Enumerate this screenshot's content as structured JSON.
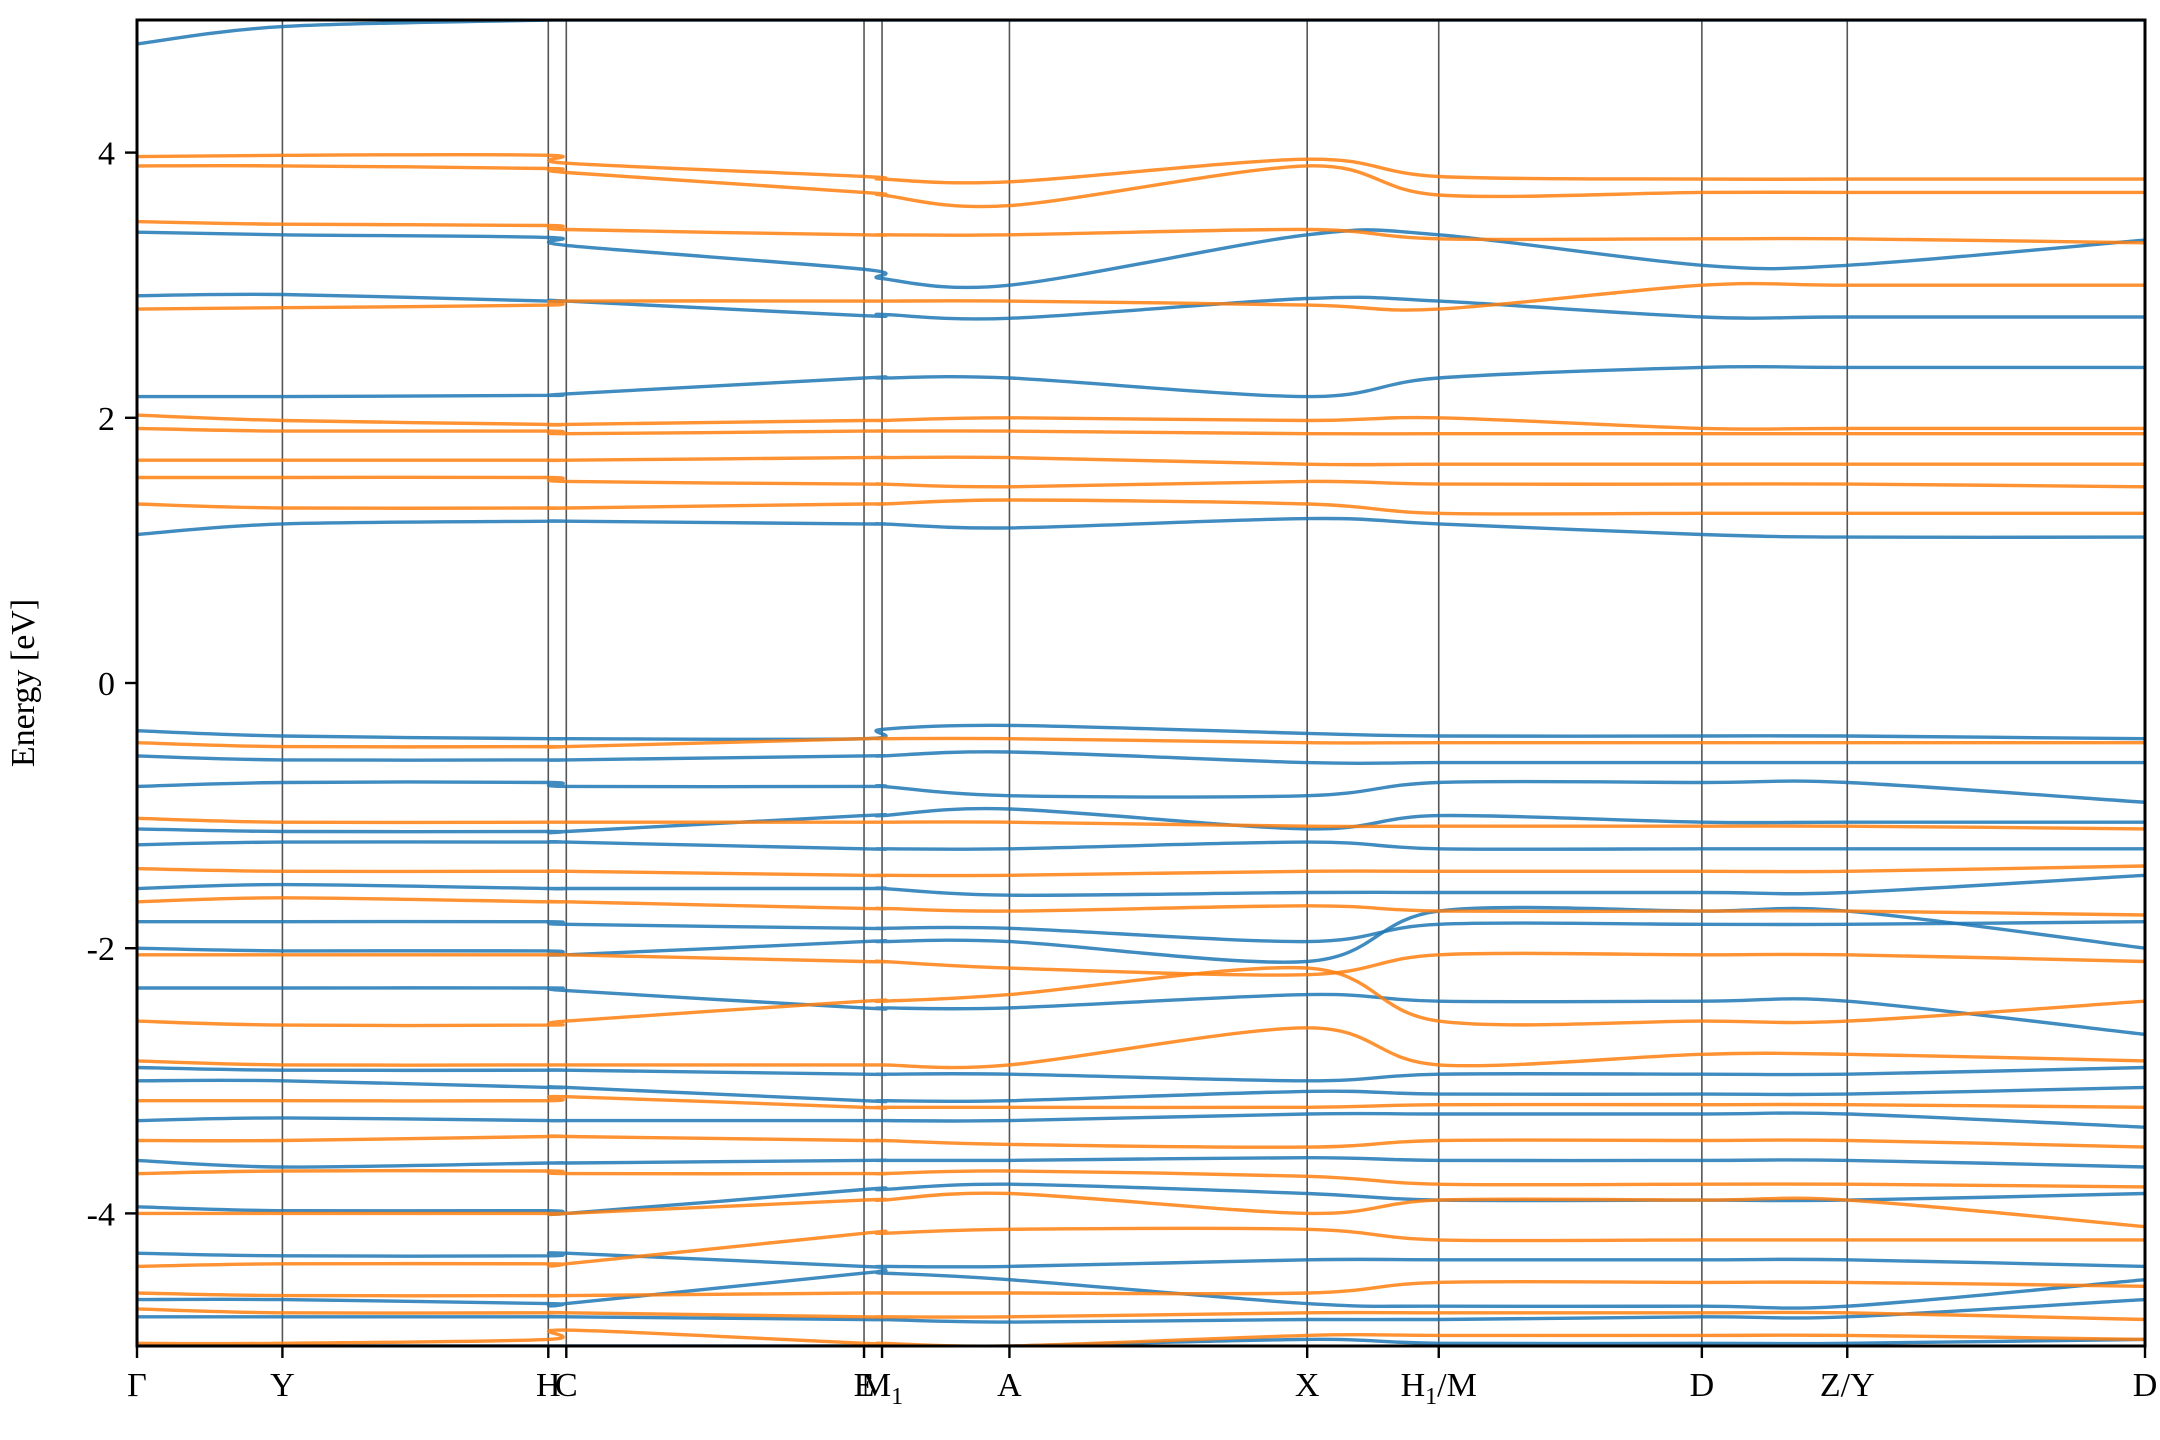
{
  "chart_data": {
    "type": "line",
    "title": "",
    "xlabel": "",
    "ylabel": "Energy [eV]",
    "ylim": [
      -5,
      5
    ],
    "yticks": [
      -4,
      -2,
      0,
      2,
      4
    ],
    "ytick_labels": [
      "-4",
      "-2",
      "0",
      "2",
      "4"
    ],
    "xlim": [
      0,
      14.5
    ],
    "kpoint_labels": [
      {
        "pos": 0.0,
        "label": "Γ"
      },
      {
        "pos": 1.05,
        "label": "Y"
      },
      {
        "pos": 2.97,
        "label": "H"
      },
      {
        "pos": 3.1,
        "label": "C"
      },
      {
        "pos": 5.25,
        "label": "E"
      },
      {
        "pos": 5.38,
        "label": "M",
        "sub": "1"
      },
      {
        "pos": 6.3,
        "label": "A"
      },
      {
        "pos": 8.45,
        "label": "X"
      },
      {
        "pos": 9.4,
        "label": "H",
        "sub": "1",
        "suffix": "/M"
      },
      {
        "pos": 11.3,
        "label": "D"
      },
      {
        "pos": 12.35,
        "label": "Z/Y"
      },
      {
        "pos": 14.5,
        "label": "D"
      }
    ],
    "vlines": [
      1.05,
      2.97,
      3.1,
      5.25,
      5.38,
      6.3,
      8.45,
      9.4,
      11.3,
      12.35
    ],
    "grid": false,
    "legend": "none",
    "series": [
      {
        "color": "#1f77b4",
        "bands": [
          [
            4.82,
            4.95,
            5.0,
            5.0,
            5.0,
            5.0,
            5.0,
            5.0,
            5.0,
            5.0,
            5.0,
            5.0
          ],
          [
            3.4,
            3.38,
            3.36,
            3.3,
            3.12,
            3.05,
            3.0,
            3.38,
            3.38,
            3.15,
            3.15,
            3.34
          ],
          [
            2.92,
            2.93,
            2.88,
            2.88,
            2.77,
            2.78,
            2.75,
            2.9,
            2.88,
            2.76,
            2.76,
            2.76
          ],
          [
            2.16,
            2.16,
            2.17,
            2.18,
            2.3,
            2.3,
            2.3,
            2.16,
            2.3,
            2.38,
            2.38,
            2.38
          ],
          [
            1.12,
            1.2,
            1.22,
            1.22,
            1.2,
            1.2,
            1.17,
            1.24,
            1.2,
            1.12,
            1.1,
            1.1
          ],
          [
            -0.36,
            -0.4,
            -0.42,
            -0.42,
            -0.42,
            -0.35,
            -0.32,
            -0.38,
            -0.4,
            -0.4,
            -0.4,
            -0.42
          ],
          [
            -0.55,
            -0.58,
            -0.58,
            -0.58,
            -0.55,
            -0.55,
            -0.52,
            -0.6,
            -0.6,
            -0.6,
            -0.6,
            -0.6
          ],
          [
            -0.78,
            -0.75,
            -0.75,
            -0.78,
            -0.78,
            -0.78,
            -0.85,
            -0.85,
            -0.75,
            -0.75,
            -0.75,
            -0.9
          ],
          [
            -1.1,
            -1.12,
            -1.12,
            -1.12,
            -1.0,
            -1.0,
            -0.95,
            -1.1,
            -1.0,
            -1.05,
            -1.05,
            -1.05
          ],
          [
            -1.22,
            -1.2,
            -1.2,
            -1.2,
            -1.25,
            -1.25,
            -1.25,
            -1.2,
            -1.25,
            -1.25,
            -1.25,
            -1.25
          ],
          [
            -1.55,
            -1.52,
            -1.55,
            -1.55,
            -1.55,
            -1.55,
            -1.6,
            -1.58,
            -1.58,
            -1.58,
            -1.58,
            -1.45
          ],
          [
            -1.8,
            -1.8,
            -1.8,
            -1.82,
            -1.85,
            -1.85,
            -1.85,
            -1.95,
            -1.82,
            -1.82,
            -1.82,
            -1.8
          ],
          [
            -2.0,
            -2.02,
            -2.02,
            -2.05,
            -1.95,
            -1.95,
            -1.95,
            -2.1,
            -1.72,
            -1.72,
            -1.72,
            -2.0
          ],
          [
            -2.3,
            -2.3,
            -2.3,
            -2.32,
            -2.45,
            -2.45,
            -2.45,
            -2.35,
            -2.4,
            -2.4,
            -2.4,
            -2.65
          ],
          [
            -2.9,
            -2.92,
            -2.92,
            -2.92,
            -2.95,
            -2.95,
            -2.95,
            -3.0,
            -2.95,
            -2.95,
            -2.95,
            -2.9
          ],
          [
            -3.0,
            -3.0,
            -3.05,
            -3.05,
            -3.15,
            -3.15,
            -3.15,
            -3.08,
            -3.1,
            -3.1,
            -3.1,
            -3.05
          ],
          [
            -3.3,
            -3.28,
            -3.3,
            -3.3,
            -3.3,
            -3.3,
            -3.3,
            -3.25,
            -3.25,
            -3.25,
            -3.25,
            -3.35
          ],
          [
            -3.6,
            -3.65,
            -3.62,
            -3.62,
            -3.6,
            -3.6,
            -3.6,
            -3.58,
            -3.6,
            -3.6,
            -3.6,
            -3.65
          ],
          [
            -3.95,
            -3.98,
            -3.98,
            -4.0,
            -3.82,
            -3.82,
            -3.78,
            -3.85,
            -3.9,
            -3.9,
            -3.9,
            -3.85
          ],
          [
            -4.3,
            -4.32,
            -4.32,
            -4.3,
            -4.4,
            -4.4,
            -4.4,
            -4.35,
            -4.35,
            -4.35,
            -4.35,
            -4.4
          ],
          [
            -4.65,
            -4.65,
            -4.68,
            -4.68,
            -4.45,
            -4.45,
            -4.5,
            -4.68,
            -4.7,
            -4.7,
            -4.7,
            -4.5
          ],
          [
            -4.78,
            -4.78,
            -4.78,
            -4.78,
            -4.8,
            -4.8,
            -4.82,
            -4.8,
            -4.8,
            -4.78,
            -4.78,
            -4.65
          ],
          [
            -5.0,
            -5.0,
            -5.0,
            -5.0,
            -5.0,
            -5.0,
            -5.0,
            -4.95,
            -4.98,
            -4.98,
            -4.98,
            -4.95
          ]
        ]
      },
      {
        "color": "#ff7f0e",
        "bands": [
          [
            3.97,
            3.98,
            3.98,
            3.92,
            3.82,
            3.8,
            3.78,
            3.95,
            3.82,
            3.8,
            3.8,
            3.8
          ],
          [
            3.9,
            3.9,
            3.88,
            3.85,
            3.7,
            3.68,
            3.6,
            3.9,
            3.68,
            3.7,
            3.7,
            3.7
          ],
          [
            3.48,
            3.46,
            3.45,
            3.42,
            3.38,
            3.38,
            3.38,
            3.42,
            3.35,
            3.35,
            3.35,
            3.32
          ],
          [
            2.82,
            2.83,
            2.85,
            2.88,
            2.88,
            2.88,
            2.88,
            2.85,
            2.82,
            3.0,
            3.0,
            3.0
          ],
          [
            2.02,
            1.98,
            1.95,
            1.95,
            1.98,
            1.98,
            2.0,
            1.98,
            2.0,
            1.92,
            1.92,
            1.92
          ],
          [
            1.92,
            1.9,
            1.9,
            1.88,
            1.9,
            1.9,
            1.9,
            1.88,
            1.88,
            1.88,
            1.88,
            1.88
          ],
          [
            1.68,
            1.68,
            1.68,
            1.68,
            1.7,
            1.7,
            1.7,
            1.65,
            1.65,
            1.65,
            1.65,
            1.65
          ],
          [
            1.55,
            1.55,
            1.55,
            1.52,
            1.5,
            1.5,
            1.48,
            1.52,
            1.5,
            1.5,
            1.5,
            1.48
          ],
          [
            1.35,
            1.32,
            1.32,
            1.32,
            1.35,
            1.35,
            1.38,
            1.35,
            1.28,
            1.28,
            1.28,
            1.28
          ],
          [
            -0.45,
            -0.48,
            -0.48,
            -0.48,
            -0.42,
            -0.42,
            -0.42,
            -0.45,
            -0.45,
            -0.45,
            -0.45,
            -0.45
          ],
          [
            -1.02,
            -1.05,
            -1.05,
            -1.05,
            -1.05,
            -1.05,
            -1.05,
            -1.08,
            -1.08,
            -1.08,
            -1.08,
            -1.1
          ],
          [
            -1.4,
            -1.42,
            -1.42,
            -1.42,
            -1.45,
            -1.45,
            -1.45,
            -1.42,
            -1.42,
            -1.42,
            -1.42,
            -1.38
          ],
          [
            -1.65,
            -1.62,
            -1.65,
            -1.65,
            -1.7,
            -1.7,
            -1.72,
            -1.68,
            -1.72,
            -1.72,
            -1.72,
            -1.75
          ],
          [
            -2.05,
            -2.05,
            -2.05,
            -2.05,
            -2.1,
            -2.1,
            -2.15,
            -2.2,
            -2.05,
            -2.05,
            -2.05,
            -2.1
          ],
          [
            -2.55,
            -2.58,
            -2.58,
            -2.55,
            -2.4,
            -2.4,
            -2.35,
            -2.15,
            -2.55,
            -2.55,
            -2.55,
            -2.4
          ],
          [
            -2.85,
            -2.88,
            -2.88,
            -2.88,
            -2.88,
            -2.88,
            -2.88,
            -2.6,
            -2.88,
            -2.8,
            -2.8,
            -2.85
          ],
          [
            -3.15,
            -3.15,
            -3.15,
            -3.12,
            -3.2,
            -3.2,
            -3.2,
            -3.2,
            -3.18,
            -3.18,
            -3.18,
            -3.2
          ],
          [
            -3.45,
            -3.45,
            -3.42,
            -3.42,
            -3.45,
            -3.45,
            -3.48,
            -3.5,
            -3.45,
            -3.45,
            -3.45,
            -3.5
          ],
          [
            -3.7,
            -3.68,
            -3.68,
            -3.7,
            -3.7,
            -3.7,
            -3.68,
            -3.72,
            -3.78,
            -3.78,
            -3.78,
            -3.8
          ],
          [
            -4.0,
            -4.0,
            -4.0,
            -4.0,
            -3.9,
            -3.9,
            -3.85,
            -4.0,
            -3.9,
            -3.9,
            -3.9,
            -4.1
          ],
          [
            -4.4,
            -4.38,
            -4.38,
            -4.38,
            -4.15,
            -4.15,
            -4.12,
            -4.12,
            -4.2,
            -4.2,
            -4.2,
            -4.2
          ],
          [
            -4.6,
            -4.62,
            -4.62,
            -4.62,
            -4.6,
            -4.6,
            -4.6,
            -4.6,
            -4.52,
            -4.52,
            -4.52,
            -4.55
          ],
          [
            -4.72,
            -4.75,
            -4.75,
            -4.75,
            -4.78,
            -4.78,
            -4.78,
            -4.75,
            -4.75,
            -4.75,
            -4.75,
            -4.8
          ],
          [
            -4.98,
            -4.98,
            -4.95,
            -4.88,
            -4.98,
            -4.98,
            -5.0,
            -4.92,
            -4.92,
            -4.92,
            -4.92,
            -4.95
          ]
        ]
      }
    ]
  }
}
